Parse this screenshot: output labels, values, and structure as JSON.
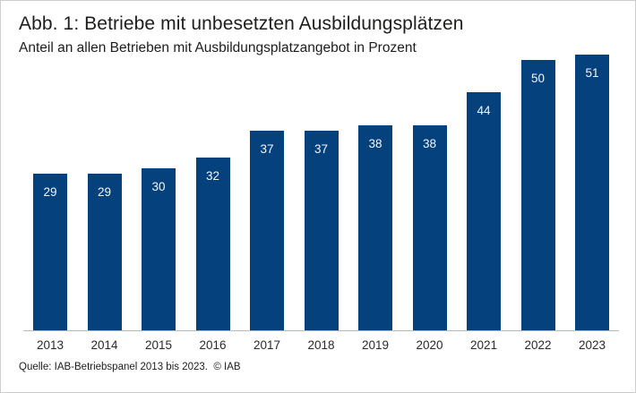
{
  "chart_data": {
    "type": "bar",
    "title": "Abb. 1: Betriebe mit unbesetzten Ausbildungsplätzen",
    "subtitle": "Anteil an allen Betrieben mit Ausbildungsplatzangebot in Prozent",
    "categories": [
      "2013",
      "2014",
      "2015",
      "2016",
      "2017",
      "2018",
      "2019",
      "2020",
      "2021",
      "2022",
      "2023"
    ],
    "values": [
      29,
      29,
      30,
      32,
      37,
      37,
      38,
      38,
      44,
      50,
      51
    ],
    "xlabel": "",
    "ylabel": "",
    "ylim": [
      0,
      51
    ],
    "grid": false,
    "legend": false,
    "value_labels": "inside-top-white",
    "source": "Quelle: IAB-Betriebspanel 2013 bis 2023.  © IAB"
  },
  "colors": {
    "bar": "#04417d",
    "bar_label": "#f4f6f9",
    "baseline": "#b5bbc3",
    "text": "#1d1d1b",
    "frame_border": "#cdcdcd",
    "background": "#ffffff"
  }
}
